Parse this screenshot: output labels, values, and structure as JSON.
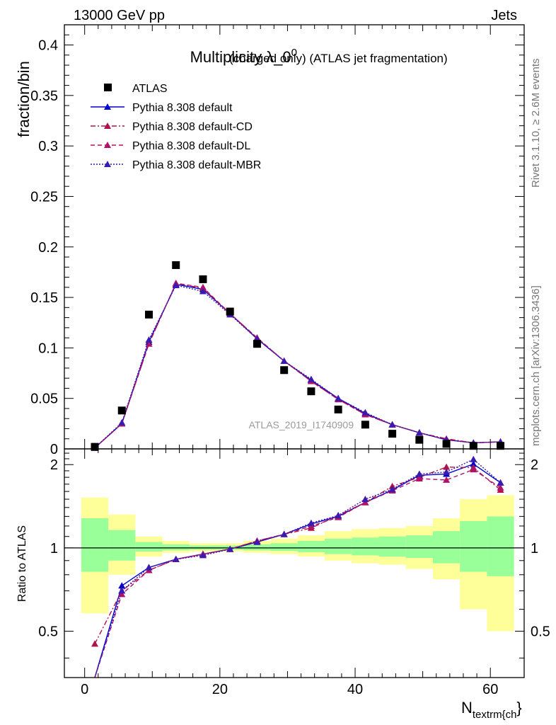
{
  "header": {
    "left": "13000 GeV pp",
    "right": "Jets"
  },
  "side_labels": {
    "rivet": "Rivet 3.1.10, ≥ 2.6M events",
    "mcplots": "mcplots.cern.ch [arXiv:1306.3436]"
  },
  "colors": {
    "atlas": "#000000",
    "default": "#0000cc",
    "cd": "#b0124a",
    "dl": "#b0126a",
    "mbr": "#3a1ab0",
    "band_outer": "#ffff99",
    "band_inner": "#99ff99"
  },
  "chart_data": [
    {
      "type": "scatter",
      "title_main": "Multiplicity λ_0",
      "title_sup": "0",
      "title_rest": " (charged only) (ATLAS jet fragmentation)",
      "ylabel": "fraction/bin",
      "watermark": "ATLAS_2019_I1740909",
      "xlim": [
        -3,
        65
      ],
      "ylim": [
        0,
        0.42
      ],
      "yticks": [
        "0",
        "0.05",
        "0.1",
        "0.15",
        "0.2",
        "0.25",
        "0.3",
        "0.35",
        "0.4"
      ],
      "x": [
        1.5,
        5.5,
        9.5,
        13.5,
        17.5,
        21.5,
        25.5,
        29.5,
        33.5,
        37.5,
        41.5,
        45.5,
        49.5,
        53.5,
        57.5,
        61.5
      ],
      "series": [
        {
          "name": "ATLAS",
          "values": [
            0.002,
            0.038,
            0.133,
            0.182,
            0.168,
            0.136,
            0.104,
            0.078,
            0.057,
            0.039,
            0.024,
            0.015,
            0.009,
            0.005,
            0.003,
            0.003
          ]
        },
        {
          "name": "Pythia 8.308 default",
          "values": [
            0.001,
            0.025,
            0.106,
            0.163,
            0.158,
            0.134,
            0.109,
            0.087,
            0.068,
            0.05,
            0.035,
            0.024,
            0.016,
            0.009,
            0.006,
            0.007
          ]
        },
        {
          "name": "Pythia 8.308 default-CD",
          "values": [
            0.001,
            0.025,
            0.104,
            0.164,
            0.159,
            0.134,
            0.11,
            0.087,
            0.067,
            0.049,
            0.034,
            0.024,
            0.016,
            0.01,
            0.006,
            0.007
          ]
        },
        {
          "name": "Pythia 8.308 default-DL",
          "values": [
            0.001,
            0.025,
            0.104,
            0.164,
            0.16,
            0.134,
            0.11,
            0.087,
            0.067,
            0.049,
            0.034,
            0.024,
            0.016,
            0.009,
            0.006,
            0.007
          ]
        },
        {
          "name": "Pythia 8.308 default-MBR",
          "values": [
            0.001,
            0.026,
            0.108,
            0.162,
            0.156,
            0.133,
            0.109,
            0.087,
            0.069,
            0.05,
            0.036,
            0.024,
            0.016,
            0.009,
            0.006,
            0.007
          ]
        }
      ]
    },
    {
      "type": "line",
      "ylabel": "Ratio to ATLAS",
      "xlabel_main": "N",
      "xlabel_sub": "textrm{ch",
      "xlabel_tail": "}",
      "xlim": [
        -3,
        65
      ],
      "ylim": [
        0.34,
        2.28
      ],
      "yticks": [
        "0.5",
        "1",
        "2"
      ],
      "xticks": [
        "0",
        "20",
        "40",
        "60"
      ],
      "bin_edges": [
        -0.5,
        3.5,
        7.5,
        11.5,
        15.5,
        19.5,
        23.5,
        27.5,
        31.5,
        35.5,
        39.5,
        43.5,
        47.5,
        51.5,
        55.5,
        59.5,
        63.5
      ],
      "band_outer": [
        [
          0.58,
          1.52
        ],
        [
          0.8,
          1.32
        ],
        [
          0.93,
          1.1
        ],
        [
          0.96,
          1.06
        ],
        [
          0.97,
          1.04
        ],
        [
          0.97,
          1.04
        ],
        [
          0.96,
          1.06
        ],
        [
          0.95,
          1.08
        ],
        [
          0.93,
          1.11
        ],
        [
          0.9,
          1.15
        ],
        [
          0.88,
          1.17
        ],
        [
          0.87,
          1.18
        ],
        [
          0.84,
          1.2
        ],
        [
          0.77,
          1.28
        ],
        [
          0.6,
          1.5
        ],
        [
          0.5,
          1.55
        ]
      ],
      "band_inner": [
        [
          0.82,
          1.28
        ],
        [
          0.9,
          1.16
        ],
        [
          0.97,
          1.05
        ],
        [
          0.98,
          1.03
        ],
        [
          0.985,
          1.02
        ],
        [
          0.985,
          1.02
        ],
        [
          0.98,
          1.03
        ],
        [
          0.975,
          1.04
        ],
        [
          0.965,
          1.06
        ],
        [
          0.95,
          1.08
        ],
        [
          0.94,
          1.09
        ],
        [
          0.93,
          1.1
        ],
        [
          0.92,
          1.11
        ],
        [
          0.88,
          1.15
        ],
        [
          0.82,
          1.25
        ],
        [
          0.79,
          1.3
        ]
      ],
      "x": [
        1.5,
        5.5,
        9.5,
        13.5,
        17.5,
        21.5,
        25.5,
        29.5,
        33.5,
        37.5,
        41.5,
        45.5,
        49.5,
        53.5,
        57.5,
        61.5
      ],
      "series": [
        {
          "name": "Pythia 8.308 default",
          "values": [
            0.3,
            0.73,
            0.85,
            0.91,
            0.95,
            0.99,
            1.05,
            1.12,
            1.22,
            1.3,
            1.46,
            1.62,
            1.83,
            1.85,
            2.01,
            1.72
          ]
        },
        {
          "name": "Pythia 8.308 default-CD",
          "values": [
            0.45,
            0.7,
            0.83,
            0.91,
            0.95,
            0.99,
            1.06,
            1.12,
            1.18,
            1.31,
            1.46,
            1.67,
            1.8,
            1.96,
            1.95,
            1.62
          ]
        },
        {
          "name": "Pythia 8.308 default-DL",
          "values": [
            0.33,
            0.68,
            0.83,
            0.91,
            0.95,
            0.99,
            1.06,
            1.12,
            1.2,
            1.29,
            1.46,
            1.61,
            1.78,
            1.76,
            1.92,
            1.65
          ]
        },
        {
          "name": "Pythia 8.308 default-MBR",
          "values": [
            0.3,
            0.7,
            0.85,
            0.91,
            0.94,
            0.99,
            1.05,
            1.12,
            1.23,
            1.31,
            1.5,
            1.63,
            1.85,
            1.88,
            2.09,
            1.72
          ]
        }
      ]
    }
  ]
}
